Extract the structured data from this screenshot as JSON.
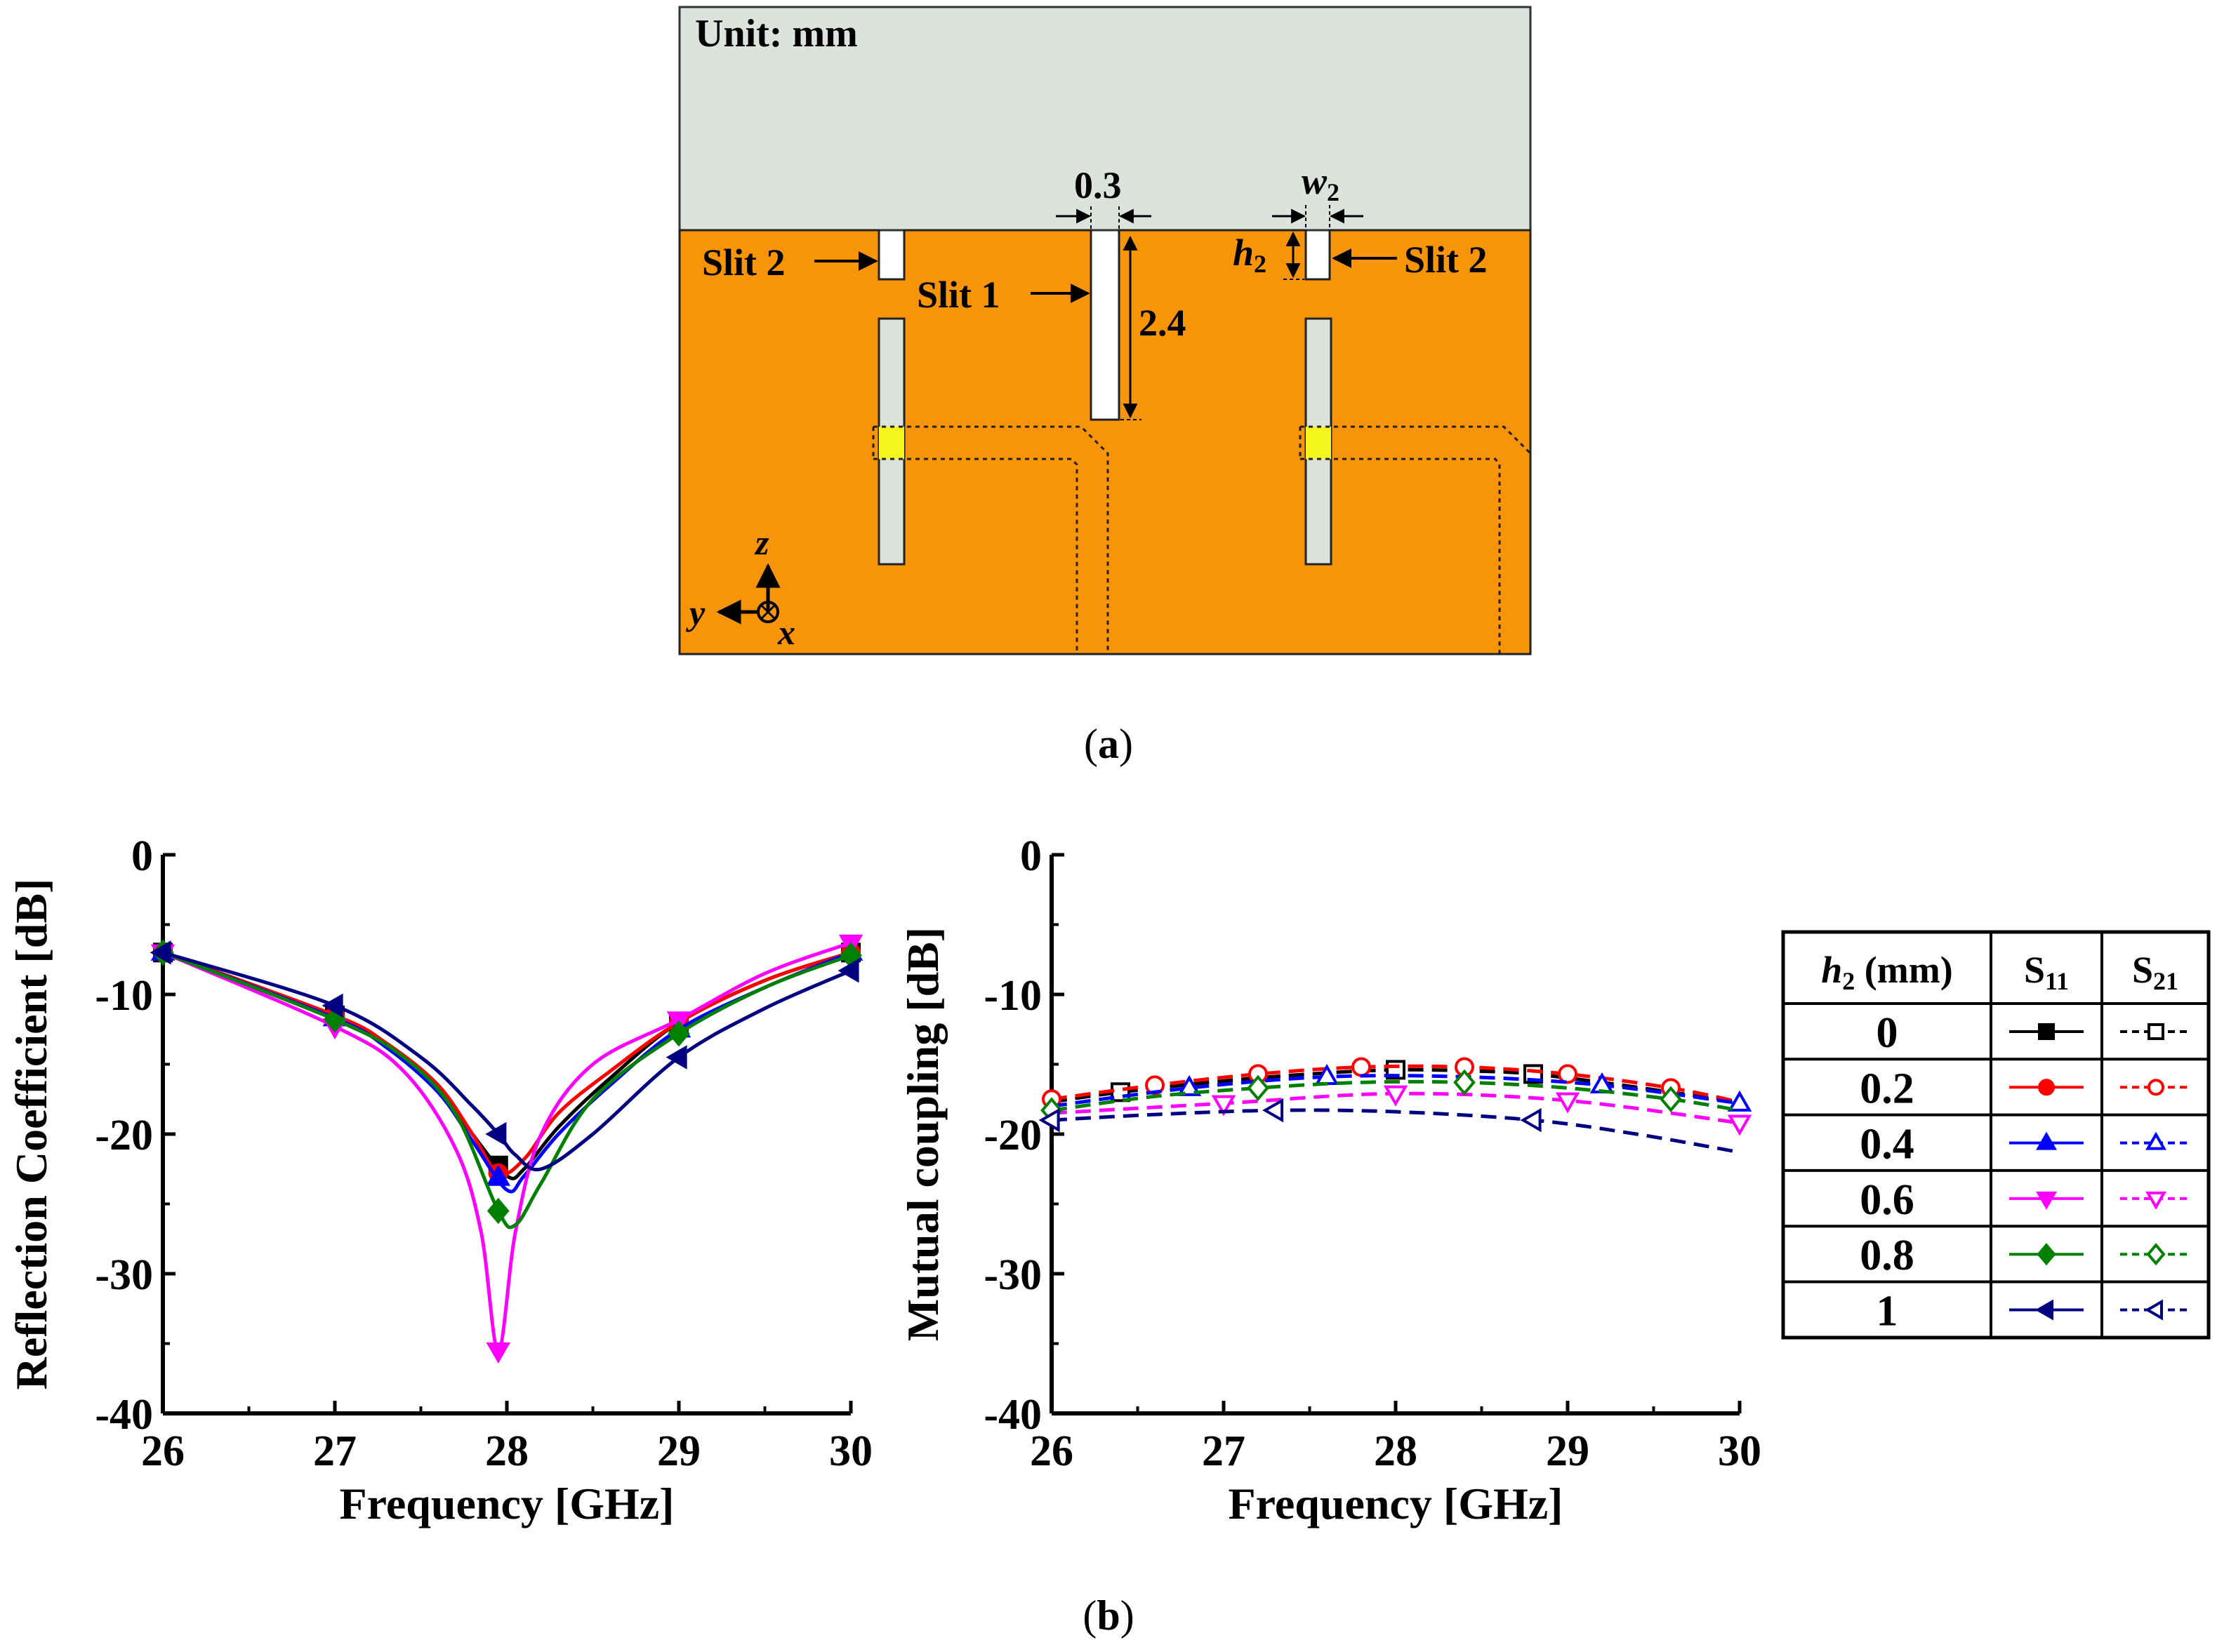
{
  "diagram": {
    "unit_label": "Unit: mm",
    "slit1_label": "Slit 1",
    "slit2_left_label": "Slit 2",
    "slit2_right_label": "Slit 2",
    "slit1_width": "0.3",
    "slit1_length": "2.4",
    "w2_label": "w",
    "w2_sub": "2",
    "h2_label": "h",
    "h2_sub": "2",
    "axis_z": "z",
    "axis_y": "y",
    "axis_x": "x",
    "colors": {
      "ground": "#dbe3dc",
      "substrate": "#f7940a",
      "port": "#f5f51e"
    }
  },
  "caption_a": {
    "open": "(",
    "letter": "a",
    "close": ")"
  },
  "caption_b": {
    "open": "(",
    "letter": "b",
    "close": ")"
  },
  "legend": {
    "header_param": "h",
    "header_param_sub": "2",
    "header_unit": " (mm)",
    "header_s11": "S",
    "header_s11_sub": "11",
    "header_s21": "S",
    "header_s21_sub": "21",
    "rows": [
      "0",
      "0.2",
      "0.4",
      "0.6",
      "0.8",
      "1"
    ]
  },
  "chart_data": [
    {
      "type": "line",
      "id": "reflection",
      "title": "",
      "xlabel": "Frequency [GHz]",
      "ylabel": "Reflection Coefficient [dB]",
      "xlim": [
        26,
        30
      ],
      "ylim": [
        -40,
        0
      ],
      "xticks": [
        "26",
        "27",
        "28",
        "29",
        "30"
      ],
      "yticks": [
        "0",
        "-10",
        "-20",
        "-30",
        "-40"
      ],
      "series": [
        {
          "name": "0",
          "color": "#000000",
          "marker": "square",
          "x": [
            26,
            27,
            27.3,
            27.6,
            27.8,
            28.0,
            28.1,
            28.3,
            28.6,
            29.0,
            29.5,
            30
          ],
          "y": [
            -7,
            -11.5,
            -13.5,
            -16.5,
            -20,
            -23,
            -22.5,
            -19.5,
            -16,
            -12,
            -9,
            -7
          ]
        },
        {
          "name": "0.2",
          "color": "#ff0000",
          "marker": "circle",
          "x": [
            26,
            27,
            27.3,
            27.6,
            27.8,
            27.95,
            28.1,
            28.3,
            28.6,
            29.0,
            29.5,
            30
          ],
          "y": [
            -7,
            -11.5,
            -13.5,
            -16.5,
            -20,
            -22.8,
            -21.8,
            -18.5,
            -15.5,
            -12,
            -9,
            -7
          ]
        },
        {
          "name": "0.4",
          "color": "#0000ff",
          "marker": "triangle-up",
          "x": [
            26,
            27,
            27.3,
            27.6,
            27.8,
            28.0,
            28.1,
            28.3,
            28.6,
            29.0,
            29.5,
            30
          ],
          "y": [
            -7,
            -11.7,
            -13.8,
            -17,
            -20.5,
            -24,
            -23,
            -20,
            -16.5,
            -12.5,
            -9.5,
            -7
          ]
        },
        {
          "name": "0.6",
          "color": "#ff00ff",
          "marker": "triangle-down",
          "x": [
            26,
            27,
            27.4,
            27.7,
            27.85,
            27.95,
            28.05,
            28.2,
            28.5,
            29.0,
            29.5,
            30
          ],
          "y": [
            -7,
            -12.3,
            -15.5,
            -21,
            -27,
            -35.5,
            -27,
            -20,
            -15,
            -11.8,
            -8.5,
            -6.3
          ]
        },
        {
          "name": "0.8",
          "color": "#008000",
          "marker": "diamond",
          "x": [
            26,
            27,
            27.4,
            27.7,
            27.95,
            28.05,
            28.2,
            28.5,
            29.0,
            29.5,
            30
          ],
          "y": [
            -7,
            -11.8,
            -14.5,
            -18.5,
            -25.5,
            -26.5,
            -23.5,
            -17.5,
            -12.8,
            -9.5,
            -7.2
          ]
        },
        {
          "name": "1",
          "color": "#000080",
          "marker": "triangle-left",
          "x": [
            26,
            27,
            27.5,
            27.8,
            27.95,
            28.05,
            28.2,
            28.5,
            29.0,
            29.5,
            30
          ],
          "y": [
            -7,
            -10.8,
            -14.5,
            -18,
            -20,
            -21.5,
            -22.5,
            -20,
            -14.5,
            -11,
            -8.3
          ]
        }
      ],
      "markers_x": [
        26,
        27,
        27.95,
        29,
        30
      ]
    },
    {
      "type": "line",
      "id": "mutual",
      "title": "",
      "xlabel": "Frequency [GHz]",
      "ylabel": "Mutual coupling [dB]",
      "xlim": [
        26,
        30
      ],
      "ylim": [
        -40,
        0
      ],
      "xticks": [
        "26",
        "27",
        "28",
        "29",
        "30"
      ],
      "yticks": [
        "0",
        "-10",
        "-20",
        "-30",
        "-40"
      ],
      "series": [
        {
          "name": "0",
          "color": "#000000",
          "marker": "square",
          "x": [
            26,
            26.4,
            27,
            27.5,
            28,
            28.5,
            28.8,
            29.2,
            29.6,
            30
          ],
          "y": [
            -17.7,
            -17,
            -16.2,
            -15.7,
            -15.4,
            -15.5,
            -15.7,
            -16.3,
            -17,
            -17.7
          ],
          "mx": [
            26.4,
            28,
            28.8
          ]
        },
        {
          "name": "0.2",
          "color": "#ff0000",
          "marker": "circle",
          "x": [
            26,
            26.6,
            27.2,
            27.8,
            28.4,
            29.0,
            29.6,
            30
          ],
          "y": [
            -17.5,
            -16.5,
            -15.7,
            -15.2,
            -15.2,
            -15.7,
            -16.7,
            -17.7
          ],
          "mx": [
            26,
            26.6,
            27.2,
            27.8,
            28.4,
            29.0,
            29.6
          ]
        },
        {
          "name": "0.4",
          "color": "#0000ff",
          "marker": "triangle-up",
          "x": [
            26,
            26.8,
            27.6,
            28.4,
            29.2,
            30
          ],
          "y": [
            -18,
            -16.7,
            -15.9,
            -15.9,
            -16.5,
            -17.8
          ],
          "mx": [
            26.8,
            27.6,
            29.2,
            30
          ]
        },
        {
          "name": "0.6",
          "color": "#ff00ff",
          "marker": "triangle-down",
          "x": [
            26,
            27,
            28,
            29,
            30
          ],
          "y": [
            -18.5,
            -17.8,
            -17.1,
            -17.6,
            -19.2
          ],
          "mx": [
            27,
            28,
            29,
            30
          ]
        },
        {
          "name": "0.8",
          "color": "#008000",
          "marker": "diamond",
          "x": [
            26,
            26.6,
            27.2,
            27.8,
            28.4,
            29.0,
            29.6,
            30
          ],
          "y": [
            -18.3,
            -17.3,
            -16.7,
            -16.3,
            -16.3,
            -16.7,
            -17.5,
            -18.3
          ],
          "mx": [
            26,
            27.2,
            28.4,
            29.6
          ]
        },
        {
          "name": "1",
          "color": "#000080",
          "marker": "triangle-left",
          "x": [
            26,
            26.6,
            27.3,
            28,
            28.8,
            29.4,
            30
          ],
          "y": [
            -19,
            -18.6,
            -18.3,
            -18.4,
            -19.0,
            -20,
            -21.3
          ],
          "mx": [
            26,
            27.3,
            28.8
          ]
        }
      ]
    }
  ]
}
